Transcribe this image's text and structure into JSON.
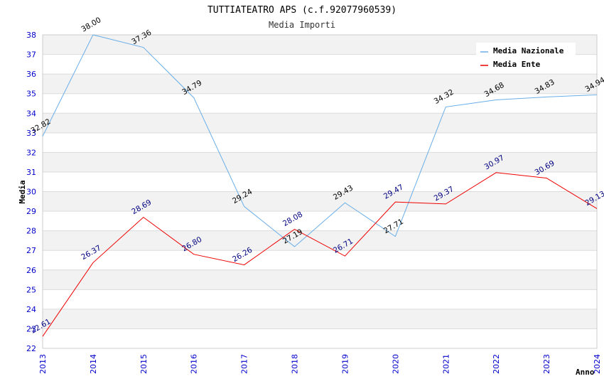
{
  "chart_data": {
    "type": "line",
    "title": "TUTTIATEATRO APS (c.f.92077960539)",
    "subtitle": "Media Importi",
    "xlabel": "Anno",
    "ylabel": "Media",
    "ylim": [
      22,
      38
    ],
    "yticks": [
      "22",
      "23",
      "24",
      "25",
      "26",
      "27",
      "28",
      "29",
      "30",
      "31",
      "32",
      "33",
      "34",
      "35",
      "36",
      "37",
      "38"
    ],
    "categories": [
      "2013",
      "2014",
      "2015",
      "2016",
      "2017",
      "2018",
      "2019",
      "2020",
      "2021",
      "2022",
      "2023",
      "2024"
    ],
    "grid": true,
    "legend_position": "top-right",
    "series": [
      {
        "name": "Media Nazionale",
        "color": "#6aaee8",
        "label_color": "#000000",
        "values": [
          32.82,
          38.0,
          37.36,
          34.79,
          29.24,
          27.19,
          29.43,
          27.71,
          34.32,
          34.68,
          34.83,
          34.94
        ],
        "labels": [
          "32.82",
          "38.00",
          "37.36",
          "34.79",
          "29.24",
          "27.19",
          "29.43",
          "27.71",
          "34.32",
          "34.68",
          "34.83",
          "34.94"
        ]
      },
      {
        "name": "Media Ente",
        "color": "#ee0000",
        "label_color": "#000080",
        "values": [
          22.61,
          26.37,
          28.69,
          26.8,
          26.26,
          28.08,
          26.71,
          29.47,
          29.37,
          30.97,
          30.69,
          29.13
        ],
        "labels": [
          "22.61",
          "26.37",
          "28.69",
          "26.80",
          "26.26",
          "28.08",
          "26.71",
          "29.47",
          "29.37",
          "30.97",
          "30.69",
          "29.13"
        ]
      }
    ]
  }
}
